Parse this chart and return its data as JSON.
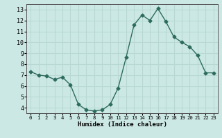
{
  "x": [
    0,
    1,
    2,
    3,
    4,
    5,
    6,
    7,
    8,
    9,
    10,
    11,
    12,
    13,
    14,
    15,
    16,
    17,
    18,
    19,
    20,
    21,
    22,
    23
  ],
  "y": [
    7.3,
    7.0,
    6.9,
    6.6,
    6.8,
    6.1,
    4.3,
    3.8,
    3.7,
    3.8,
    4.3,
    5.8,
    8.6,
    11.6,
    12.5,
    12.0,
    13.1,
    11.9,
    10.5,
    10.0,
    9.6,
    8.8,
    7.2,
    7.2
  ],
  "xlabel": "Humidex (Indice chaleur)",
  "line_color": "#2d6b5e",
  "bg_color": "#cce8e4",
  "grid_color": "#b8d8d4",
  "xlim": [
    -0.5,
    23.5
  ],
  "ylim": [
    3.5,
    13.5
  ],
  "yticks": [
    4,
    5,
    6,
    7,
    8,
    9,
    10,
    11,
    12,
    13
  ],
  "xtick_labels": [
    "0",
    "1",
    "2",
    "3",
    "4",
    "5",
    "6",
    "7",
    "8",
    "9",
    "10",
    "11",
    "12",
    "13",
    "14",
    "15",
    "16",
    "17",
    "18",
    "19",
    "20",
    "21",
    "22",
    "23"
  ],
  "marker": "D",
  "marker_size": 2.5,
  "line_width": 1.0
}
